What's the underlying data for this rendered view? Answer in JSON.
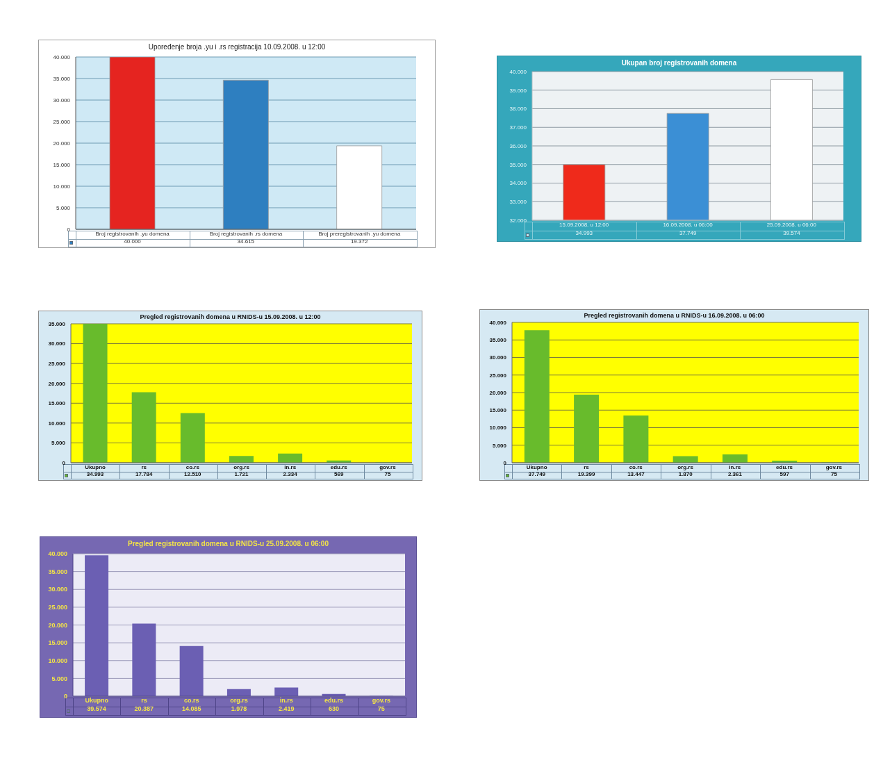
{
  "chart_data": [
    {
      "type": "bar",
      "title": "Upoređenje broja .yu i .rs registracija 10.09.2008. u 12:00",
      "categories": [
        "Broj registrovanih .yu domena",
        "Broj registrovanih .rs domena",
        "Broj preregistrovanih .yu domena"
      ],
      "values": [
        40000,
        34615,
        19372
      ],
      "colors": [
        "#e52420",
        "#2e7fc0",
        "#ffffff"
      ],
      "value_labels": [
        "40.000",
        "34.615",
        "19.372"
      ],
      "ylim": [
        0,
        40000
      ],
      "yticks": [
        {
          "value": 0,
          "label": "0"
        },
        {
          "value": 5000,
          "label": "5.000"
        },
        {
          "value": 10000,
          "label": "10.000"
        },
        {
          "value": 15000,
          "label": "15.000"
        },
        {
          "value": 20000,
          "label": "20.000"
        },
        {
          "value": 25000,
          "label": "25.000"
        },
        {
          "value": 30000,
          "label": "30.000"
        },
        {
          "value": 35000,
          "label": "35.000"
        },
        {
          "value": 40000,
          "label": "40.000"
        }
      ],
      "grid": "y"
    },
    {
      "type": "bar",
      "title": "Ukupan broj registrovanih domena",
      "categories": [
        "15.09.2008. u 12:00",
        "16.09.2008. u 06:00",
        "25.09.2008. u 06:00"
      ],
      "values": [
        34993,
        37749,
        39574
      ],
      "colors": [
        "#ef2a1b",
        "#3b8fd5",
        "#ffffff"
      ],
      "value_labels": [
        "34.993",
        "37.749",
        "39.574"
      ],
      "ylim": [
        32000,
        40000
      ],
      "yticks": [
        {
          "value": 32000,
          "label": "32.000"
        },
        {
          "value": 33000,
          "label": "33.000"
        },
        {
          "value": 34000,
          "label": "34.000"
        },
        {
          "value": 35000,
          "label": "35.000"
        },
        {
          "value": 36000,
          "label": "36.000"
        },
        {
          "value": 37000,
          "label": "37.000"
        },
        {
          "value": 38000,
          "label": "38.000"
        },
        {
          "value": 39000,
          "label": "39.000"
        },
        {
          "value": 40000,
          "label": "40.000"
        }
      ],
      "grid": "y"
    },
    {
      "type": "bar",
      "title": "Pregled registrovanih domena u RNIDS-u 15.09.2008. u 12:00",
      "categories": [
        "Ukupno",
        "rs",
        "co.rs",
        "org.rs",
        "in.rs",
        "edu.rs",
        "gov.rs"
      ],
      "values": [
        34993,
        17784,
        12510,
        1721,
        2334,
        569,
        75
      ],
      "color": "#68bb2c",
      "value_labels": [
        "34.993",
        "17.784",
        "12.510",
        "1.721",
        "2.334",
        "569",
        "75"
      ],
      "ylim": [
        0,
        35000
      ],
      "yticks": [
        {
          "value": 0,
          "label": "0"
        },
        {
          "value": 5000,
          "label": "5.000"
        },
        {
          "value": 10000,
          "label": "10.000"
        },
        {
          "value": 15000,
          "label": "15.000"
        },
        {
          "value": 20000,
          "label": "20.000"
        },
        {
          "value": 25000,
          "label": "25.000"
        },
        {
          "value": 30000,
          "label": "30.000"
        },
        {
          "value": 35000,
          "label": "35.000"
        }
      ],
      "grid": "y"
    },
    {
      "type": "bar",
      "title": "Pregled registrovanih domena u RNIDS-u 16.09.2008. u 06:00",
      "categories": [
        "Ukupno",
        "rs",
        "co.rs",
        "org.rs",
        "in.rs",
        "edu.rs",
        "gov.rs"
      ],
      "values": [
        37749,
        19399,
        13447,
        1870,
        2361,
        597,
        75
      ],
      "color": "#68bb2c",
      "value_labels": [
        "37.749",
        "19.399",
        "13.447",
        "1.870",
        "2.361",
        "597",
        "75"
      ],
      "ylim": [
        0,
        40000
      ],
      "yticks": [
        {
          "value": 0,
          "label": "0"
        },
        {
          "value": 5000,
          "label": "5.000"
        },
        {
          "value": 10000,
          "label": "10.000"
        },
        {
          "value": 15000,
          "label": "15.000"
        },
        {
          "value": 20000,
          "label": "20.000"
        },
        {
          "value": 25000,
          "label": "25.000"
        },
        {
          "value": 30000,
          "label": "30.000"
        },
        {
          "value": 35000,
          "label": "35.000"
        },
        {
          "value": 40000,
          "label": "40.000"
        }
      ],
      "grid": "y"
    },
    {
      "type": "bar",
      "title": "Pregled registrovanih domena u RNIDS-u 25.09.2008. u 06:00",
      "categories": [
        "Ukupno",
        "rs",
        "co.rs",
        "org.rs",
        "in.rs",
        "edu.rs",
        "gov.rs"
      ],
      "values": [
        39574,
        20387,
        14085,
        1978,
        2419,
        630,
        75
      ],
      "color": "#6b5fb3",
      "value_labels": [
        "39.574",
        "20.387",
        "14.085",
        "1.978",
        "2.419",
        "630",
        "75"
      ],
      "ylim": [
        0,
        40000
      ],
      "yticks": [
        {
          "value": 0,
          "label": "0"
        },
        {
          "value": 5000,
          "label": "5.000"
        },
        {
          "value": 10000,
          "label": "10.000"
        },
        {
          "value": 15000,
          "label": "15.000"
        },
        {
          "value": 20000,
          "label": "20.000"
        },
        {
          "value": 25000,
          "label": "25.000"
        },
        {
          "value": 30000,
          "label": "30.000"
        },
        {
          "value": 35000,
          "label": "35.000"
        },
        {
          "value": 40000,
          "label": "40.000"
        }
      ],
      "grid": "y"
    }
  ]
}
